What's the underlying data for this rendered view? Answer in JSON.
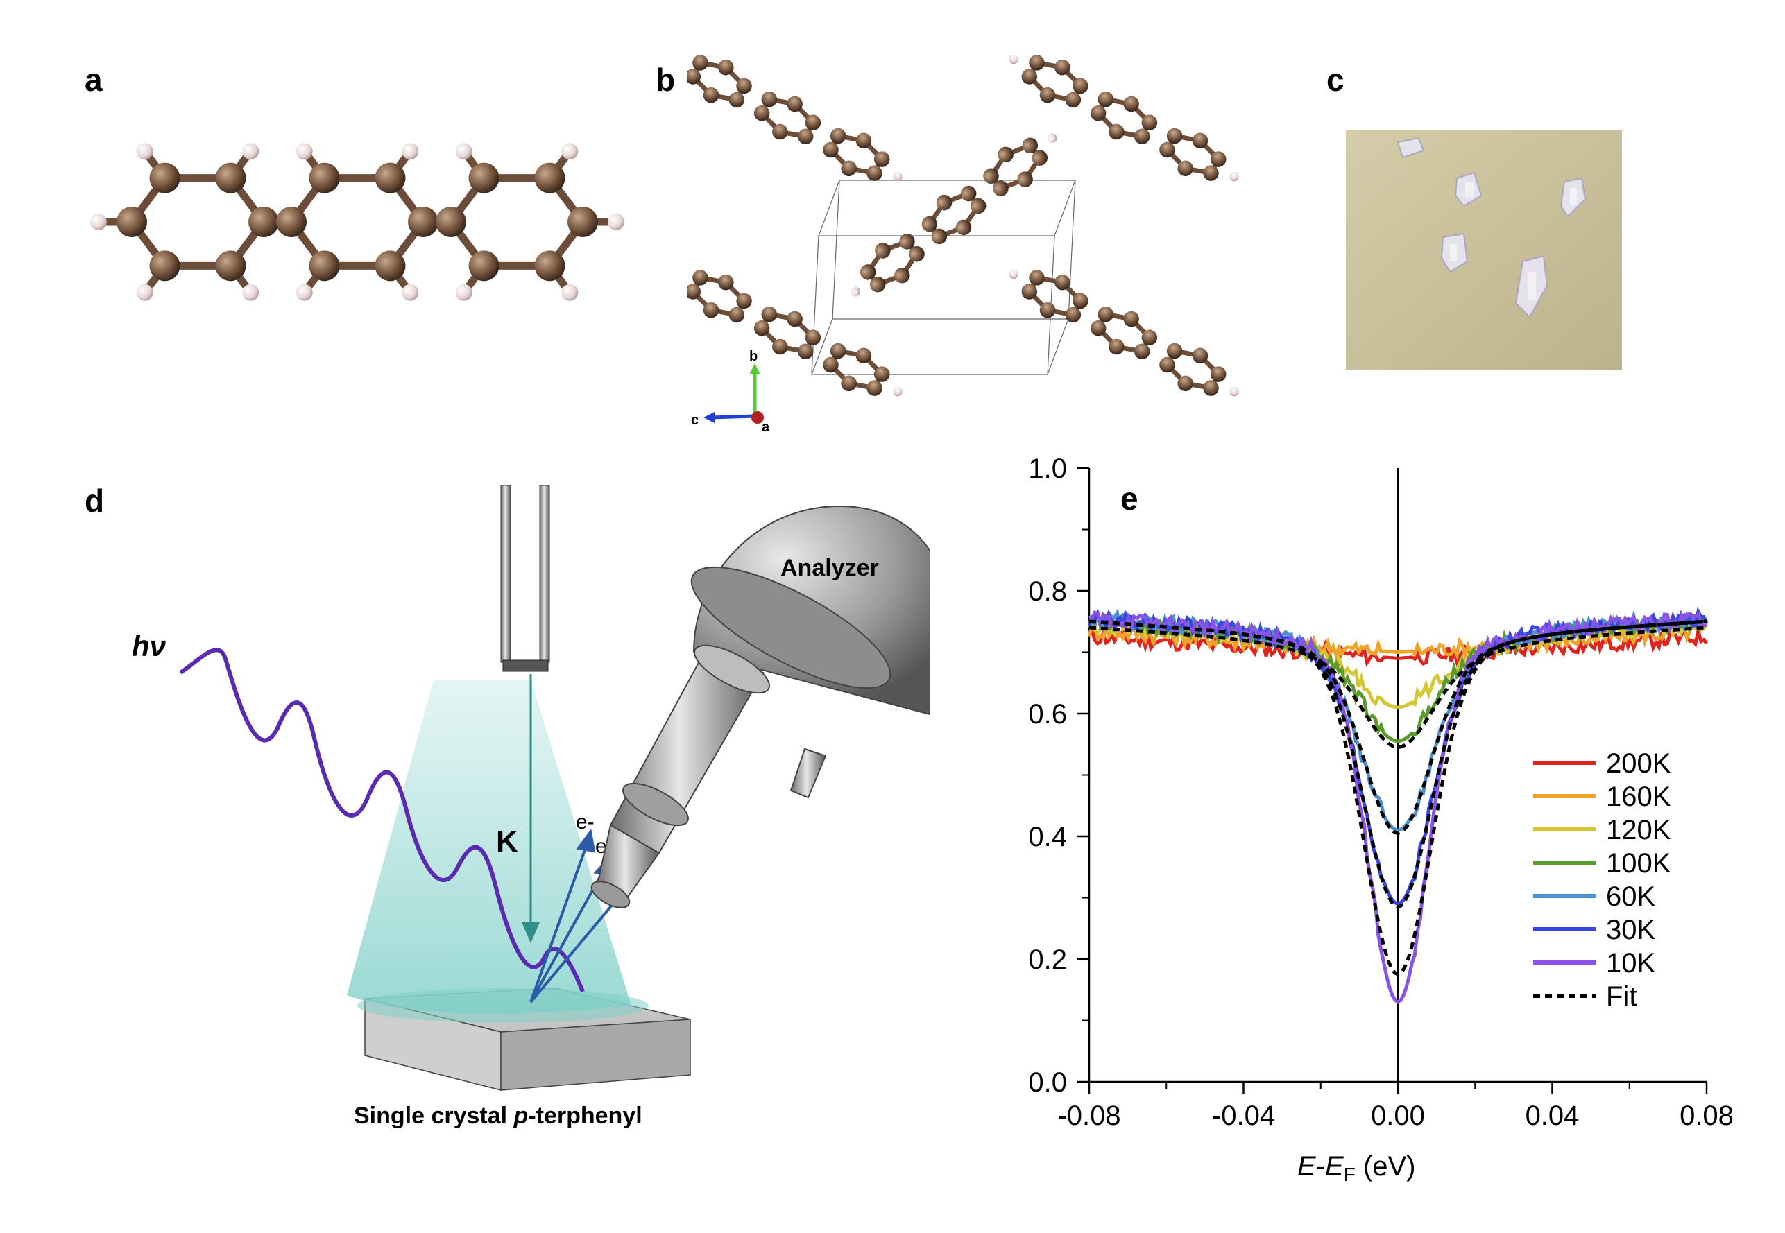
{
  "panel_labels": {
    "a": "a",
    "b": "b",
    "c": "c",
    "d": "d",
    "e": "e"
  },
  "panel_b": {
    "axis_labels": {
      "b": "b",
      "c": "c",
      "a": "a"
    }
  },
  "panel_d": {
    "photon_label": "hν",
    "momentum_label": "K",
    "electron_labels": [
      "e-",
      "e-",
      "e-"
    ],
    "analyzer_label": "Analyzer",
    "sample_label_prefix": "Single crystal ",
    "sample_label_italic": "p",
    "sample_label_suffix": "-terphenyl"
  },
  "chart_data": {
    "type": "line",
    "xlabel_italic": "E",
    "xlabel_dash": "-",
    "xlabel_italic2": "E",
    "xlabel_sub": "F",
    "xlabel_unit": " (eV)",
    "ylabel": "",
    "xlim": [
      -0.08,
      0.08
    ],
    "ylim": [
      0.0,
      1.0
    ],
    "x_ticks": [
      "-0.08",
      "-0.04",
      "0.00",
      "0.04",
      "0.08"
    ],
    "y_ticks": [
      "0.0",
      "0.2",
      "0.4",
      "0.6",
      "0.8",
      "1.0"
    ],
    "legend_position": "right",
    "colors": {
      "200K": "#e0241c",
      "160K": "#efa32a",
      "120K": "#d3c733",
      "100K": "#5b9a2c",
      "60K": "#4f8fcb",
      "30K": "#3b46e0",
      "10K": "#8a52e6",
      "Fit": "#000000"
    },
    "series": [
      {
        "name": "200K",
        "baseline": 0.72,
        "dip_depth": 0.0,
        "sigma": 0.01
      },
      {
        "name": "160K",
        "baseline": 0.73,
        "dip_depth": 0.0,
        "sigma": 0.01
      },
      {
        "name": "120K",
        "baseline": 0.74,
        "dip_depth": 0.06,
        "sigma": 0.008
      },
      {
        "name": "100K",
        "baseline": 0.745,
        "dip_depth": 0.12,
        "sigma": 0.0085
      },
      {
        "name": "60K",
        "baseline": 0.75,
        "dip_depth": 0.27,
        "sigma": 0.009
      },
      {
        "name": "30K",
        "baseline": 0.75,
        "dip_depth": 0.39,
        "sigma": 0.0085
      },
      {
        "name": "10K",
        "baseline": 0.75,
        "dip_depth": 0.55,
        "sigma": 0.0075
      }
    ],
    "fit": {
      "name": "Fit",
      "curves": [
        {
          "baseline": 0.74,
          "dip_depth": 0.12
        },
        {
          "baseline": 0.75,
          "dip_depth": 0.27
        },
        {
          "baseline": 0.75,
          "dip_depth": 0.39
        },
        {
          "baseline": 0.75,
          "dip_depth": 0.5
        }
      ]
    }
  }
}
